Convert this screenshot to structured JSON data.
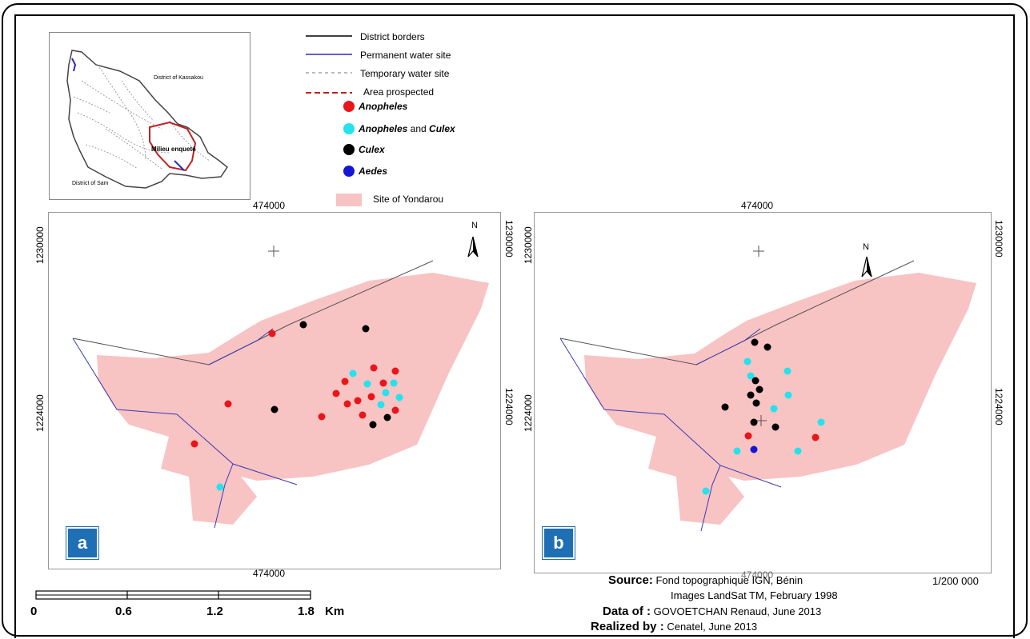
{
  "inset": {
    "label_kassakou": "District of Kassakou",
    "label_sam": "District of Sam",
    "label_milieu": "Milieu enqueté"
  },
  "legend": {
    "district_borders": "District borders",
    "permanent_water": "Permanent water site",
    "temporary_water": "Temporary water site",
    "area_prospected": "Area prospected",
    "anopheles": "Anopheles",
    "anopheles_culex_a": "Anopheles",
    "anopheles_culex_and": " and ",
    "anopheles_culex_b": "Culex",
    "culex": "Culex",
    "aedes": "Aedes",
    "site": "Site of Yondarou"
  },
  "colors": {
    "anopheles": "#e8161b",
    "anopheles_culex": "#22e3ee",
    "culex": "#000000",
    "aedes": "#1515d6",
    "site": "#f8c3c3",
    "water": "#3a3ab8"
  },
  "panel_a": {
    "badge": "a",
    "coord_top": "474000",
    "coord_bottom": "474000",
    "coord_left_top": "1230000",
    "coord_left_mid": "1224000",
    "coord_right_top": "1230000",
    "coord_right_mid": "1224000",
    "north": "N"
  },
  "panel_b": {
    "badge": "b",
    "coord_top": "474000",
    "coord_bottom": "474000",
    "coord_left_top": "1230000",
    "coord_left_mid": "1224000",
    "coord_right_top": "1230000",
    "coord_right_mid": "1224000",
    "north": "N"
  },
  "scale": {
    "t0": "0",
    "t1": "0.6",
    "t2": "1.2",
    "t3": "1.8",
    "unit": "Km"
  },
  "credits": {
    "source_label": "Source:",
    "source_value": "Fond topographique IGN, Bénin",
    "scale_ratio": "1/200 000",
    "images": "Images LandSat TM, February 1998",
    "data_label": "Data of :",
    "data_value": "GOVOETCHAN Renaud, June 2013",
    "realized_label": "Realized by :",
    "realized_value": "Cenatel, June 2013"
  }
}
